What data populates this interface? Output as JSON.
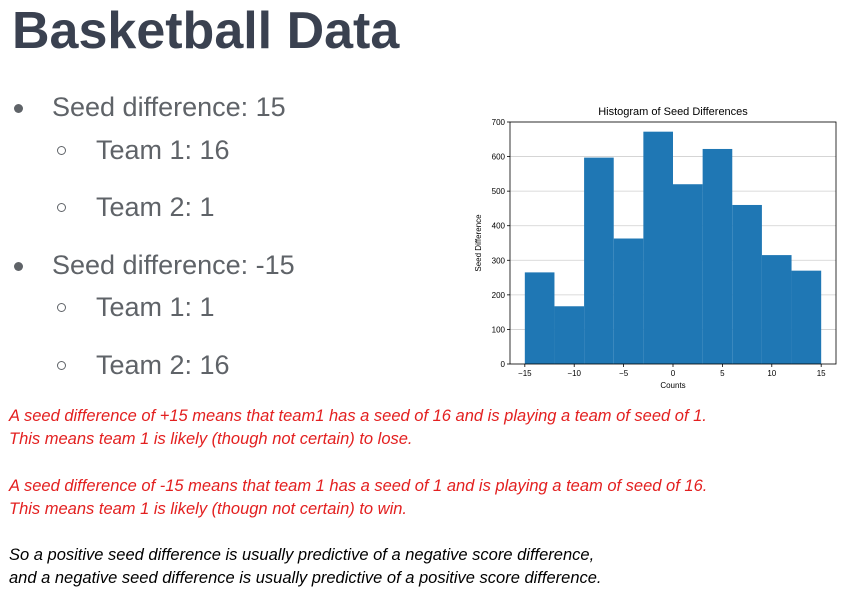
{
  "slide": {
    "title": "Basketball Data"
  },
  "bullets": [
    {
      "text": "Seed difference: 15",
      "level": 1
    },
    {
      "text": "Team 1: 16",
      "level": 2
    },
    {
      "text": "Team 2: 1",
      "level": 2
    },
    {
      "text": "Seed difference: -15",
      "level": 1
    },
    {
      "text": "Team 1: 1",
      "level": 2
    },
    {
      "text": "Team 2: 16",
      "level": 2
    }
  ],
  "notes": [
    {
      "lines": [
        "A seed difference of +15 means that team1 has a seed of 16 and is playing a team of seed of 1.",
        "This means team 1 is likely (though not certain) to lose."
      ],
      "color": "#e32020"
    },
    {
      "lines": [
        "A seed difference of -15 means that team 1 has a seed of 1 and is playing a team of seed of 16.",
        "This means team 1 is likely (thougn not certain) to win."
      ],
      "color": "#e32020"
    },
    {
      "lines": [
        "So a positive seed difference is usually predictive of a negative score difference,",
        "and a negative seed difference is usually predictive of a positive score difference."
      ],
      "color": "#000000"
    }
  ],
  "chart_data": {
    "type": "bar",
    "title": "Histogram of Seed Differences",
    "xlabel": "Counts",
    "ylabel": "Seed Difference",
    "xlim": [
      -16.5,
      16.5
    ],
    "ylim": [
      0,
      700
    ],
    "xticks": [
      -15,
      -10,
      -5,
      0,
      5,
      10,
      15
    ],
    "xtick_labels": [
      "−15",
      "−10",
      "−5",
      "0",
      "5",
      "10",
      "15"
    ],
    "yticks": [
      0,
      100,
      200,
      300,
      400,
      500,
      600,
      700
    ],
    "ytick_labels": [
      "0",
      "100",
      "200",
      "300",
      "400",
      "500",
      "600",
      "700"
    ],
    "grid": "y",
    "bar_color": "#1f77b4",
    "bins": [
      {
        "x0": -15,
        "x1": -12,
        "value": 265
      },
      {
        "x0": -12,
        "x1": -9,
        "value": 167
      },
      {
        "x0": -9,
        "x1": -6,
        "value": 597
      },
      {
        "x0": -6,
        "x1": -3,
        "value": 363
      },
      {
        "x0": -3,
        "x1": 0,
        "value": 672
      },
      {
        "x0": 0,
        "x1": 3,
        "value": 520
      },
      {
        "x0": 3,
        "x1": 6,
        "value": 622
      },
      {
        "x0": 6,
        "x1": 9,
        "value": 460
      },
      {
        "x0": 9,
        "x1": 12,
        "value": 315
      },
      {
        "x0": 12,
        "x1": 15,
        "value": 270
      }
    ]
  }
}
